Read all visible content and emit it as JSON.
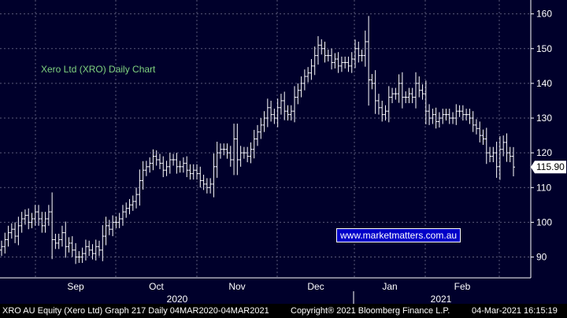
{
  "chart_data": {
    "type": "ohlc",
    "title": "Xero Ltd (XRO) Daily Chart",
    "last_price_label": "115.90",
    "y_ticks": [
      90,
      100,
      110,
      120,
      130,
      140,
      150,
      160
    ],
    "ylim": [
      84,
      164
    ],
    "month_labels": [
      "Sep",
      "Oct",
      "Nov",
      "Dec",
      "Jan",
      "Feb"
    ],
    "year_labels": [
      "2020",
      "2021"
    ],
    "grid": true,
    "colors": {
      "background": "#00002b",
      "bars": "#ffffff",
      "grid": "#5a5a7a",
      "title": "#7fd27f",
      "last_price_box": "#ffffff"
    },
    "close_series": [
      93,
      95,
      97,
      98,
      96,
      99,
      101,
      102,
      100,
      101,
      103,
      101,
      99,
      101,
      103,
      95,
      94,
      95,
      97,
      93,
      94,
      92,
      90,
      90,
      91,
      93,
      92,
      91,
      93,
      92,
      96,
      99,
      98,
      100,
      100,
      101,
      103,
      104,
      105,
      106,
      108,
      112,
      115,
      116,
      117,
      119,
      118,
      117,
      115,
      116,
      118,
      118,
      116,
      116,
      117,
      115,
      114,
      115,
      114,
      112,
      111,
      110,
      111,
      116,
      120,
      121,
      121,
      120,
      118,
      124,
      118,
      120,
      120,
      119,
      121,
      124,
      126,
      128,
      130,
      133,
      131,
      130,
      133,
      135,
      132,
      131,
      132,
      136,
      138,
      140,
      142,
      143,
      145,
      148,
      151,
      150,
      148,
      148,
      146,
      147,
      145,
      146,
      146,
      145,
      147,
      150,
      148,
      148,
      152,
      141,
      140,
      135,
      133,
      131,
      132,
      136,
      137,
      137,
      140,
      136,
      136,
      137,
      136,
      140,
      138,
      137,
      132,
      130,
      131,
      129,
      130,
      131,
      131,
      130,
      130,
      132,
      132,
      131,
      131,
      130,
      128,
      127,
      125,
      124,
      120,
      119,
      120,
      116,
      121,
      123,
      120,
      119,
      115.9
    ]
  },
  "footer": {
    "left": "XRO AU Equity (Xero Ltd) Graph 217  Daily 04MAR2020-04MAR2021",
    "mid": "Copyright® 2021 Bloomberg Finance L.P.",
    "right": "04-Mar-2021 16:15:19"
  },
  "watermark": "www.marketmatters.com.au"
}
